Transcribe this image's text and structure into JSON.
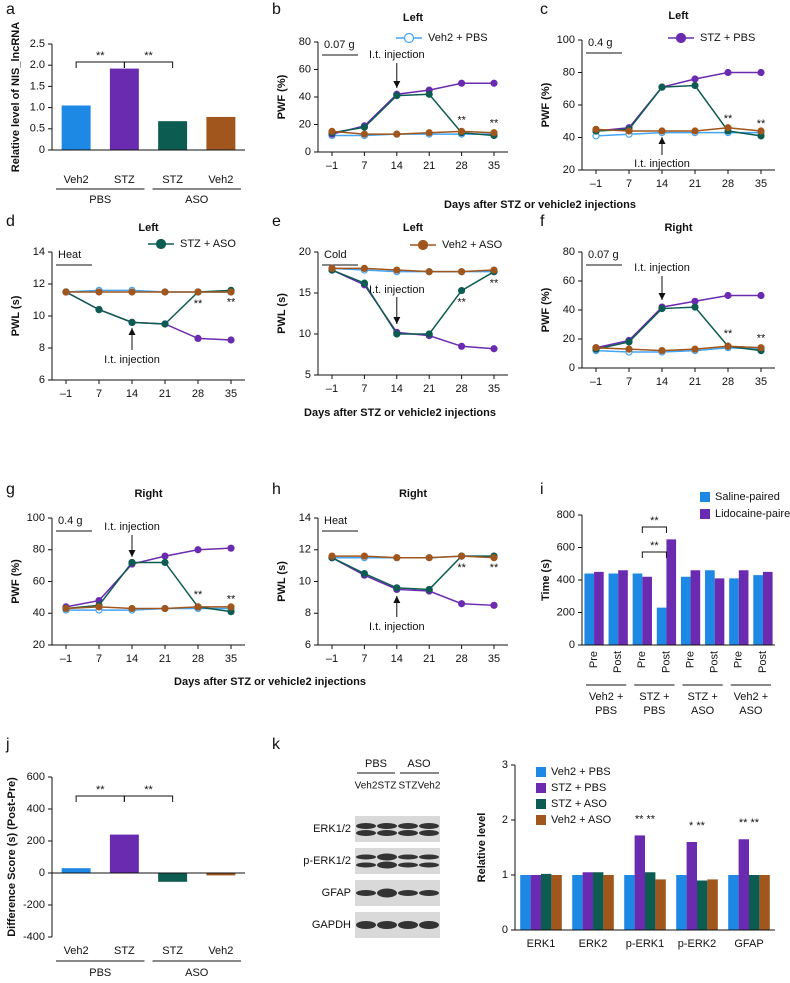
{
  "chart_data": [
    {
      "type": "bar",
      "label": "a",
      "ylabel": "Relative level of NIS_lncRNA",
      "categories": [
        "Veh2",
        "STZ",
        "STZ",
        "Veh2"
      ],
      "groups": [
        [
          "PBS"
        ],
        [
          "ASO"
        ]
      ],
      "values": [
        1.05,
        1.92,
        0.68,
        0.78
      ],
      "colors": [
        "#1e88e5",
        "#6b2bb0",
        "#0d5c52",
        "#a0561c"
      ],
      "ylim": [
        0,
        2.5
      ],
      "yticks": [
        0,
        0.5,
        {
          "value": 1,
          "label": "1.0"
        },
        1.5,
        {
          "value": 2,
          "label": "2.0"
        },
        2.5
      ],
      "significance": [
        "**",
        "**"
      ]
    },
    {
      "type": "line",
      "label": "b",
      "title": "Left",
      "ylabel": "PWF (%)",
      "scale_label": "0.07 g",
      "annotation": "I.t. injection",
      "categories": [
        "–1",
        "7",
        "14",
        "21",
        "28",
        "35"
      ],
      "series": [
        {
          "name": "Veh2 + PBS",
          "color": "#42a5f5",
          "open": true,
          "values": [
            12,
            12,
            13,
            13,
            13,
            13
          ]
        },
        {
          "color": "#6b2bb0",
          "values": [
            13,
            19,
            42,
            45,
            50,
            50
          ]
        },
        {
          "color": "#0d5c52",
          "values": [
            14,
            18,
            41,
            42,
            14,
            12
          ]
        },
        {
          "color": "#a0561c",
          "values": [
            15,
            13,
            13,
            14,
            15,
            14
          ]
        }
      ],
      "ylim": [
        0,
        80
      ],
      "yticks": [
        0,
        20,
        40,
        60,
        80
      ],
      "significance": [
        "**",
        "**"
      ]
    },
    {
      "type": "line",
      "label": "c",
      "title": "Left",
      "ylabel": "PWF (%)",
      "scale_label": "0.4 g",
      "annotation": "I.t. injection",
      "xlabel": "Days after STZ or vehicle2 injections",
      "categories": [
        "–1",
        "7",
        "14",
        "21",
        "28",
        "35"
      ],
      "series": [
        {
          "color": "#42a5f5",
          "open": true,
          "values": [
            41,
            42,
            43,
            43,
            43,
            43
          ]
        },
        {
          "name": "STZ + PBS",
          "color": "#6b2bb0",
          "values": [
            44,
            46,
            71,
            76,
            80,
            80
          ]
        },
        {
          "color": "#0d5c52",
          "values": [
            44,
            45,
            71,
            72,
            44,
            41
          ]
        },
        {
          "color": "#a0561c",
          "values": [
            45,
            44,
            44,
            44,
            46,
            44
          ]
        }
      ],
      "ylim": [
        20,
        100
      ],
      "yticks": [
        20,
        40,
        60,
        80,
        100
      ],
      "significance": [
        "**",
        "**"
      ]
    },
    {
      "type": "line",
      "label": "d",
      "title": "Left",
      "ylabel": "PWL (s)",
      "scale_label": "Heat",
      "annotation": "I.t. injection",
      "categories": [
        "–1",
        "7",
        "14",
        "21",
        "28",
        "35"
      ],
      "series": [
        {
          "color": "#42a5f5",
          "open": true,
          "values": [
            11.5,
            11.6,
            11.6,
            11.5,
            11.5,
            11.5
          ]
        },
        {
          "color": "#6b2bb0",
          "values": [
            11.5,
            10.4,
            9.6,
            9.5,
            8.6,
            8.5
          ]
        },
        {
          "name": "STZ + ASO",
          "color": "#0d5c52",
          "values": [
            11.5,
            10.4,
            9.6,
            9.5,
            11.5,
            11.6
          ]
        },
        {
          "color": "#a0561c",
          "values": [
            11.5,
            11.5,
            11.5,
            11.5,
            11.5,
            11.5
          ]
        }
      ],
      "ylim": [
        6,
        14
      ],
      "yticks": [
        6,
        8,
        10,
        12,
        14
      ],
      "significance": [
        "**",
        "**"
      ]
    },
    {
      "type": "line",
      "label": "e",
      "title": "Left",
      "ylabel": "PWL (s)",
      "scale_label": "Cold",
      "annotation": "I.t. injection",
      "xlabel": "Days after STZ or vehicle2 injections",
      "categories": [
        "–1",
        "7",
        "14",
        "21",
        "28",
        "35"
      ],
      "series": [
        {
          "color": "#42a5f5",
          "open": true,
          "values": [
            18,
            17.8,
            17.6,
            17.6,
            17.6,
            17.6
          ]
        },
        {
          "color": "#6b2bb0",
          "values": [
            17.8,
            16,
            10.2,
            9.8,
            8.5,
            8.2
          ]
        },
        {
          "color": "#0d5c52",
          "values": [
            17.8,
            16.2,
            10,
            10,
            15.3,
            17.6
          ]
        },
        {
          "name": "Veh2 + ASO",
          "color": "#a0561c",
          "values": [
            18,
            18,
            17.8,
            17.6,
            17.6,
            17.8
          ]
        }
      ],
      "ylim": [
        5,
        20
      ],
      "yticks": [
        5,
        10,
        15,
        20
      ],
      "significance": [
        "**",
        "**"
      ]
    },
    {
      "type": "line",
      "label": "f",
      "title": "Right",
      "ylabel": "PWF (%)",
      "scale_label": "0.07 g",
      "annotation": "I.t. injection",
      "categories": [
        "–1",
        "7",
        "14",
        "21",
        "28",
        "35"
      ],
      "series": [
        {
          "color": "#42a5f5",
          "open": true,
          "values": [
            12,
            11,
            11,
            12,
            14,
            13
          ]
        },
        {
          "color": "#6b2bb0",
          "values": [
            14,
            19,
            42,
            46,
            50,
            50
          ]
        },
        {
          "color": "#0d5c52",
          "values": [
            13,
            18,
            41,
            42,
            15,
            12
          ]
        },
        {
          "color": "#a0561c",
          "values": [
            14,
            13,
            12,
            13,
            15,
            14
          ]
        }
      ],
      "ylim": [
        0,
        80
      ],
      "yticks": [
        0,
        20,
        40,
        60,
        80
      ],
      "significance": [
        "**",
        "**"
      ]
    },
    {
      "type": "line",
      "label": "g",
      "title": "Right",
      "ylabel": "PWF (%)",
      "scale_label": "0.4 g",
      "annotation": "I.t. injection",
      "categories": [
        "–1",
        "7",
        "14",
        "21",
        "28",
        "35"
      ],
      "series": [
        {
          "color": "#42a5f5",
          "open": true,
          "values": [
            42,
            42,
            42,
            43,
            43,
            43
          ]
        },
        {
          "color": "#6b2bb0",
          "values": [
            44,
            48,
            71,
            76,
            80,
            81
          ]
        },
        {
          "color": "#0d5c52",
          "values": [
            43,
            45,
            72,
            72,
            44,
            41
          ]
        },
        {
          "color": "#a0561c",
          "values": [
            43,
            44,
            43,
            43,
            44,
            44
          ]
        }
      ],
      "ylim": [
        20,
        100
      ],
      "yticks": [
        20,
        40,
        60,
        80,
        100
      ],
      "significance": [
        "**",
        "**"
      ]
    },
    {
      "type": "line",
      "label": "h",
      "title": "Right",
      "ylabel": "PWL (s)",
      "scale_label": "Heat",
      "annotation": "I.t. injection",
      "xlabel": "Days after STZ or vehicle2 injections",
      "categories": [
        "–1",
        "7",
        "14",
        "21",
        "28",
        "35"
      ],
      "series": [
        {
          "color": "#42a5f5",
          "open": true,
          "values": [
            11.5,
            11.5,
            11.5,
            11.5,
            11.6,
            11.6
          ]
        },
        {
          "color": "#6b2bb0",
          "values": [
            11.5,
            10.4,
            9.5,
            9.4,
            8.6,
            8.5
          ]
        },
        {
          "color": "#0d5c52",
          "values": [
            11.5,
            10.5,
            9.6,
            9.5,
            11.6,
            11.6
          ]
        },
        {
          "color": "#a0561c",
          "values": [
            11.6,
            11.6,
            11.5,
            11.5,
            11.6,
            11.5
          ]
        }
      ],
      "ylim": [
        6,
        14
      ],
      "yticks": [
        6,
        8,
        10,
        12,
        14
      ],
      "significance": [
        "**",
        "**"
      ]
    },
    {
      "type": "bar",
      "label": "i",
      "ylabel": "Time (s)",
      "categories": [
        "Pre",
        "Post",
        "Pre",
        "Post",
        "Pre",
        "Post",
        "Pre",
        "Post"
      ],
      "groups": [
        [
          "Veh2 +",
          "PBS"
        ],
        [
          "STZ +",
          "PBS"
        ],
        [
          "STZ +",
          "ASO"
        ],
        [
          "Veh2 +",
          "ASO"
        ]
      ],
      "series": [
        {
          "name": "Saline-paired",
          "color": "#1e88e5",
          "values": [
            440,
            440,
            440,
            230,
            420,
            460,
            410,
            430
          ]
        },
        {
          "name": "Lidocaine-paired",
          "color": "#6b2bb0",
          "values": [
            450,
            460,
            420,
            650,
            460,
            410,
            460,
            450
          ]
        }
      ],
      "ylim": [
        0,
        800
      ],
      "yticks": [
        0,
        200,
        400,
        600,
        800
      ],
      "significance": [
        "**",
        "**"
      ]
    },
    {
      "type": "bar",
      "label": "j",
      "ylabel": "Difference Score (s) (Post-Pre)",
      "categories": [
        "Veh2",
        "STZ",
        "STZ",
        "Veh2"
      ],
      "groups": [
        [
          "PBS"
        ],
        [
          "ASO"
        ]
      ],
      "values": [
        30,
        240,
        -55,
        -15
      ],
      "colors": [
        "#1e88e5",
        "#6b2bb0",
        "#0d5c52",
        "#a0561c"
      ],
      "ylim": [
        -400,
        600
      ],
      "yticks": [
        -400,
        -200,
        0,
        200,
        400,
        600
      ],
      "significance": [
        "**",
        "**"
      ]
    },
    {
      "type": "bar",
      "ylabel": "Relative level",
      "categories": [
        "ERK1",
        "ERK2",
        "p-ERK1",
        "p-ERK2",
        "GFAP"
      ],
      "series": [
        {
          "name": "Veh2 + PBS",
          "color": "#1e88e5",
          "values": [
            1,
            1,
            1,
            1,
            1
          ]
        },
        {
          "name": "STZ + PBS",
          "color": "#6b2bb0",
          "values": [
            1,
            1.05,
            1.72,
            1.6,
            1.65
          ]
        },
        {
          "name": "STZ + ASO",
          "color": "#0d5c52",
          "values": [
            1.02,
            1.05,
            1.05,
            0.9,
            1
          ]
        },
        {
          "name": "Veh2 + ASO",
          "color": "#a0561c",
          "values": [
            1,
            1,
            0.92,
            0.92,
            1
          ]
        }
      ],
      "ylim": [
        0,
        3
      ],
      "yticks": [
        0,
        1,
        2,
        3
      ],
      "significance": [
        "** **",
        "* **",
        "** **"
      ]
    }
  ],
  "blot": {
    "label": "k",
    "groups": [
      "PBS",
      "ASO"
    ],
    "lanes": [
      "Veh2",
      "STZ",
      "STZ",
      "Veh2"
    ],
    "rows": [
      "ERK1/2",
      "p-ERK1/2",
      "GFAP",
      "GAPDH"
    ]
  }
}
